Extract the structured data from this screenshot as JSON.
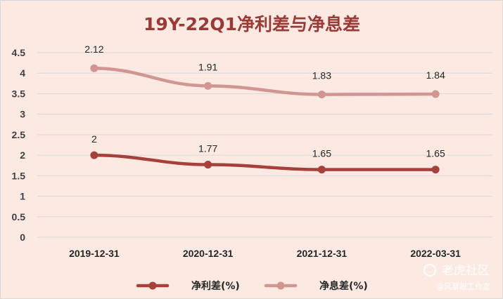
{
  "chart_data": {
    "type": "line",
    "title": "19Y-22Q1净利差与净息差",
    "categories": [
      "2019-12-31",
      "2020-12-31",
      "2021-12-31",
      "2022-03-31"
    ],
    "ylim": [
      0,
      4.5
    ],
    "yticks": [
      "0",
      "0.5",
      "1",
      "1.5",
      "2",
      "2.5",
      "3",
      "3.5",
      "4",
      "4.5"
    ],
    "grid": true,
    "legend_position": "bottom",
    "series": [
      {
        "name": "净利差(%)",
        "values": [
          2,
          1.77,
          1.65,
          1.65
        ],
        "labels": [
          "2",
          "1.77",
          "1.65",
          "1.65"
        ],
        "color": "#a6403b"
      },
      {
        "name": "净息差(%)",
        "values": [
          4.12,
          3.69,
          3.48,
          3.49
        ],
        "labels": [
          "2.12",
          "1.91",
          "1.83",
          "1.84"
        ],
        "color": "#d19592"
      }
    ]
  },
  "watermark": {
    "brand": "老虎社区",
    "handle": "@风暴眼工作室"
  }
}
